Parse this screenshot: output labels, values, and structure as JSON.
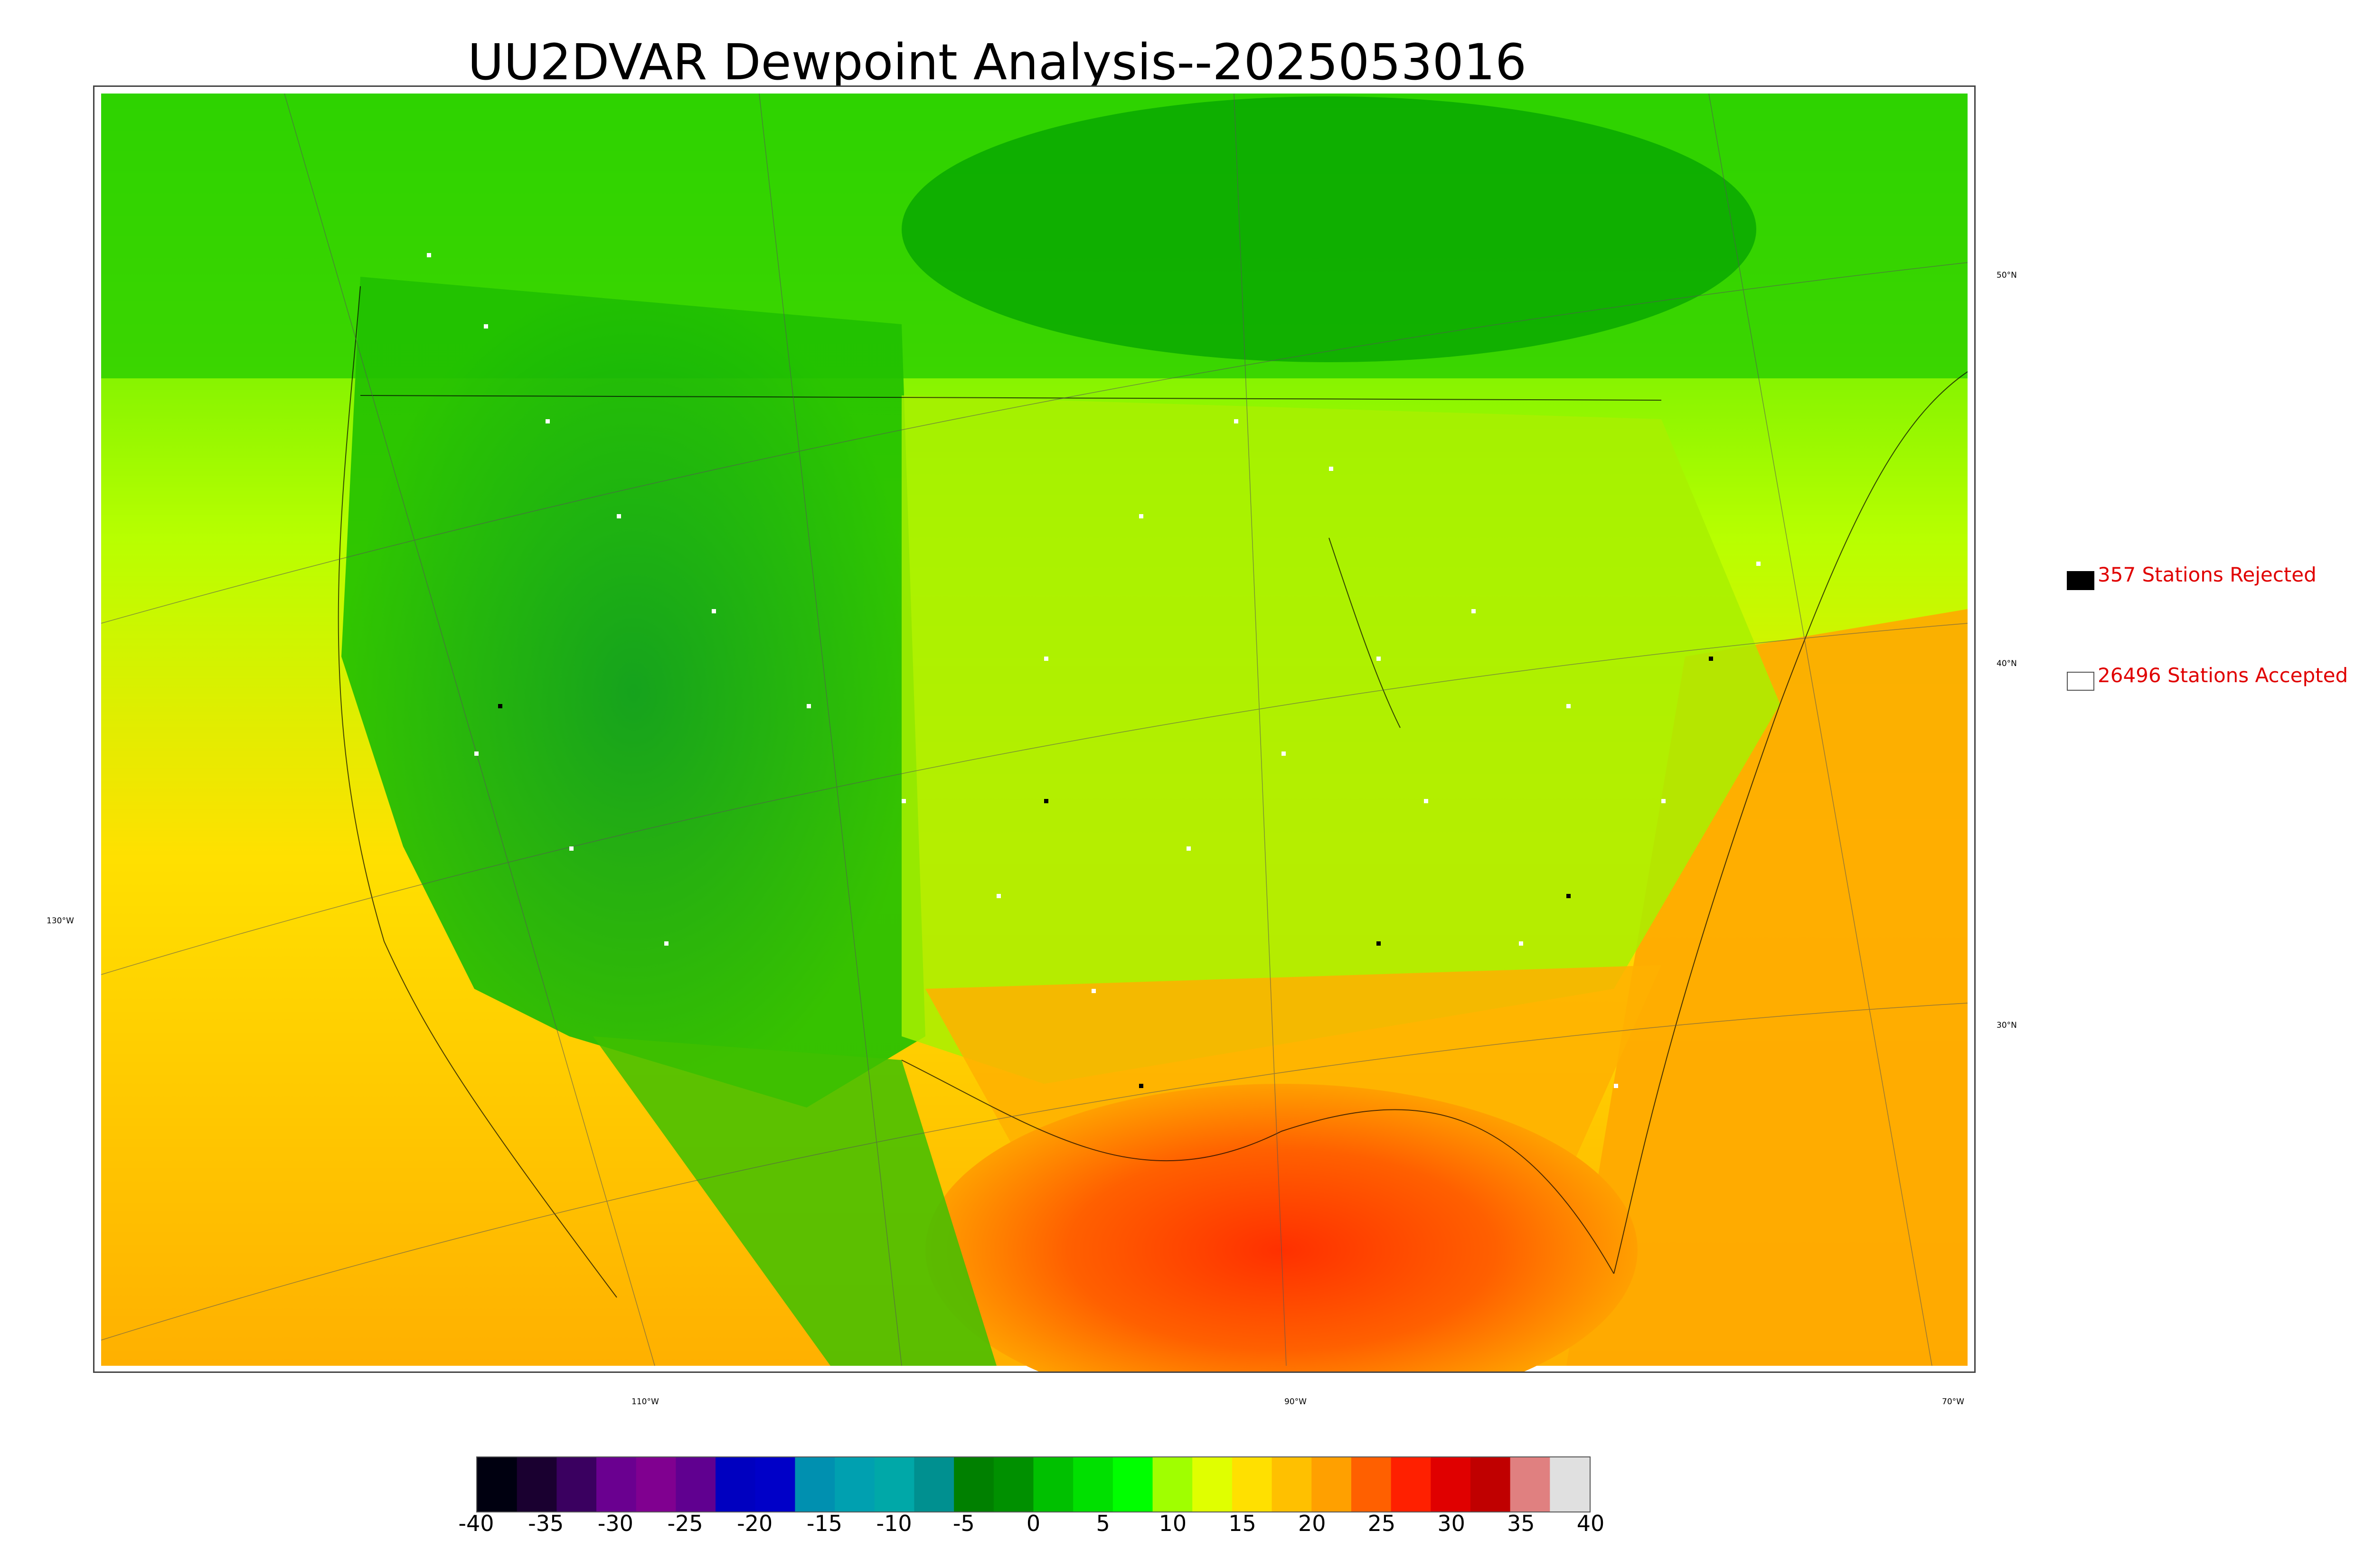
{
  "title": "UU2DVAR Dewpoint Analysis--2025053016",
  "lat_labels": [
    "50°N",
    "40°N",
    "30°N",
    "130°W"
  ],
  "lon_labels": [
    "110°W",
    "90°W",
    "70°W"
  ],
  "legend": {
    "rejected": {
      "count_text": "357 Stations Rejected",
      "swatch_color": "#000000"
    },
    "accepted": {
      "count_text": "26496 Stations Accepted",
      "swatch_color": "#ffffff"
    }
  },
  "colorbar": {
    "ticks": [
      "-40",
      "-35",
      "-30",
      "-25",
      "-20",
      "-15",
      "-10",
      "-5",
      "0",
      "5",
      "10",
      "15",
      "20",
      "25",
      "30",
      "35",
      "40"
    ],
    "range": [
      -40,
      40
    ],
    "colors": [
      "#000010",
      "#1a0030",
      "#3a0060",
      "#6a0090",
      "#800090",
      "#600090",
      "#0000c0",
      "#0000c8",
      "#0090b0",
      "#00a0b0",
      "#00a8a8",
      "#009090",
      "#008000",
      "#009000",
      "#00c000",
      "#00e000",
      "#00ff00",
      "#a0ff00",
      "#e0ff00",
      "#ffe000",
      "#ffc000",
      "#ffa000",
      "#ff6000",
      "#ff2000",
      "#e00000",
      "#c00000",
      "#e08080",
      "#e0e0e0"
    ]
  },
  "icons": {
    "map": "dewpoint-analysis-map"
  }
}
